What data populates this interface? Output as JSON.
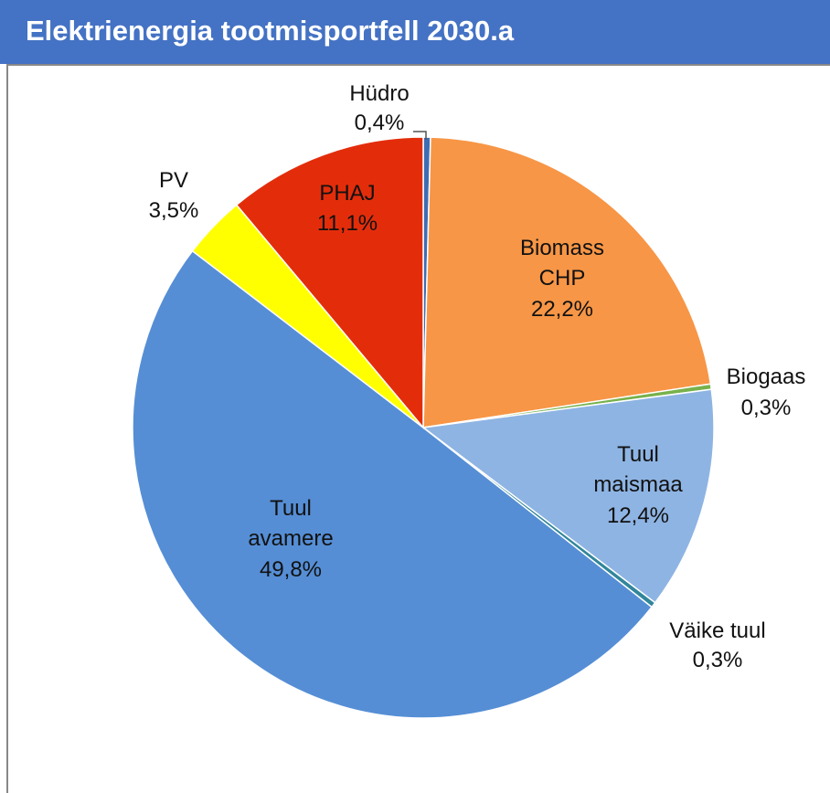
{
  "chart_data": {
    "type": "pie",
    "title": "Elektrienergia tootmisportfell 2030.a",
    "categories": [
      "Hüdro",
      "Biomass CHP",
      "Biogaas",
      "Tuul maismaa",
      "Väike tuul",
      "Tuul avamere",
      "PV",
      "PHAJ"
    ],
    "values": [
      0.4,
      22.2,
      0.3,
      12.4,
      0.3,
      49.8,
      3.5,
      11.1
    ],
    "value_labels": [
      "0,4%",
      "22,2%",
      "0,3%",
      "12,4%",
      "0,3%",
      "49,8%",
      "3,5%",
      "11,1%"
    ],
    "colors": [
      "#3f6db3",
      "#f79646",
      "#77b14c",
      "#8eb4e3",
      "#31869b",
      "#558ed5",
      "#ffff00",
      "#e32d0a"
    ]
  }
}
